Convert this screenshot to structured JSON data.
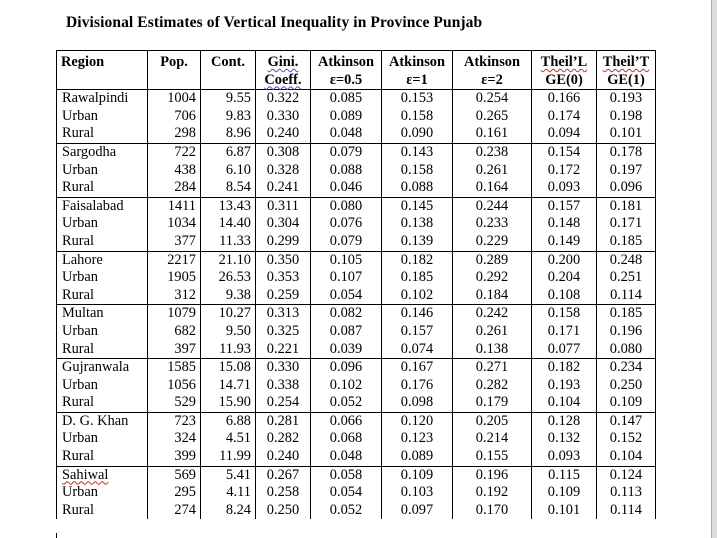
{
  "title": "Divisional Estimates of Vertical Inequality in Province Punjab",
  "columns": [
    {
      "line1": "Region",
      "line2": ""
    },
    {
      "line1": "Pop.",
      "line2": ""
    },
    {
      "line1": "Cont.",
      "line2": ""
    },
    {
      "line1": "Gini.",
      "line2": "Coeff."
    },
    {
      "line1": "Atkinson",
      "line2": "ε=0.5"
    },
    {
      "line1": "Atkinson",
      "line2": "ε=1"
    },
    {
      "line1": "Atkinson",
      "line2": "ε=2"
    },
    {
      "line1": "Theil’L",
      "line2": "GE(0)"
    },
    {
      "line1": "Theil’T",
      "line2": "GE(1)"
    }
  ],
  "rows": [
    [
      "Rawalpindi",
      "1004",
      "9.55",
      "0.322",
      "0.085",
      "0.153",
      "0.254",
      "0.166",
      "0.193"
    ],
    [
      "Urban",
      "706",
      "9.83",
      "0.330",
      "0.089",
      "0.158",
      "0.265",
      "0.174",
      "0.198"
    ],
    [
      "Rural",
      "298",
      "8.96",
      "0.240",
      "0.048",
      "0.090",
      "0.161",
      "0.094",
      "0.101"
    ],
    [
      "Sargodha",
      "722",
      "6.87",
      "0.308",
      "0.079",
      "0.143",
      "0.238",
      "0.154",
      "0.178"
    ],
    [
      "Urban",
      "438",
      "6.10",
      "0.328",
      "0.088",
      "0.158",
      "0.261",
      "0.172",
      "0.197"
    ],
    [
      "Rural",
      "284",
      "8.54",
      "0.241",
      "0.046",
      "0.088",
      "0.164",
      "0.093",
      "0.096"
    ],
    [
      "Faisalabad",
      "1411",
      "13.43",
      "0.311",
      "0.080",
      "0.145",
      "0.244",
      "0.157",
      "0.181"
    ],
    [
      "Urban",
      "1034",
      "14.40",
      "0.304",
      "0.076",
      "0.138",
      "0.233",
      "0.148",
      "0.171"
    ],
    [
      "Rural",
      "377",
      "11.33",
      "0.299",
      "0.079",
      "0.139",
      "0.229",
      "0.149",
      "0.185"
    ],
    [
      "Lahore",
      "2217",
      "21.10",
      "0.350",
      "0.105",
      "0.182",
      "0.289",
      "0.200",
      "0.248"
    ],
    [
      "Urban",
      "1905",
      "26.53",
      "0.353",
      "0.107",
      "0.185",
      "0.292",
      "0.204",
      "0.251"
    ],
    [
      "Rural",
      "312",
      "9.38",
      "0.259",
      "0.054",
      "0.102",
      "0.184",
      "0.108",
      "0.114"
    ],
    [
      "Multan",
      "1079",
      "10.27",
      "0.313",
      "0.082",
      "0.146",
      "0.242",
      "0.158",
      "0.185"
    ],
    [
      "Urban",
      "682",
      "9.50",
      "0.325",
      "0.087",
      "0.157",
      "0.261",
      "0.171",
      "0.196"
    ],
    [
      "Rural",
      "397",
      "11.93",
      "0.221",
      "0.039",
      "0.074",
      "0.138",
      "0.077",
      "0.080"
    ],
    [
      "Gujranwala",
      "1585",
      "15.08",
      "0.330",
      "0.096",
      "0.167",
      "0.271",
      "0.182",
      "0.234"
    ],
    [
      "Urban",
      "1056",
      "14.71",
      "0.338",
      "0.102",
      "0.176",
      "0.282",
      "0.193",
      "0.250"
    ],
    [
      "Rural",
      "529",
      "15.90",
      "0.254",
      "0.052",
      "0.098",
      "0.179",
      "0.104",
      "0.109"
    ],
    [
      "D. G. Khan",
      "723",
      "6.88",
      "0.281",
      "0.066",
      "0.120",
      "0.205",
      "0.128",
      "0.147"
    ],
    [
      "Urban",
      "324",
      "4.51",
      "0.282",
      "0.068",
      "0.123",
      "0.214",
      "0.132",
      "0.152"
    ],
    [
      "Rural",
      "399",
      "11.99",
      "0.240",
      "0.048",
      "0.089",
      "0.155",
      "0.093",
      "0.104"
    ],
    [
      "Sahiwal",
      "569",
      "5.41",
      "0.267",
      "0.058",
      "0.109",
      "0.196",
      "0.115",
      "0.124"
    ],
    [
      "Urban",
      "295",
      "4.11",
      "0.258",
      "0.054",
      "0.103",
      "0.192",
      "0.109",
      "0.113"
    ],
    [
      "Rural",
      "274",
      "8.24",
      "0.250",
      "0.052",
      "0.097",
      "0.170",
      "0.101",
      "0.114"
    ]
  ]
}
